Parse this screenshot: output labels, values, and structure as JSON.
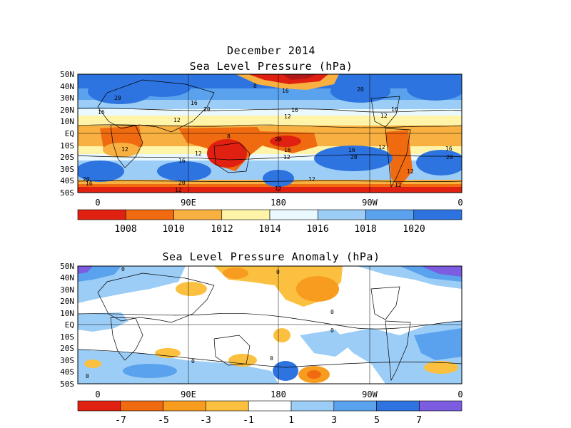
{
  "header": {
    "title": "December 2014",
    "panel1_title": "Sea Level Pressure (hPa)",
    "panel2_title": "Sea Level Pressure Anomaly (hPa)"
  },
  "axes": {
    "lat_labels": [
      "50N",
      "40N",
      "30N",
      "20N",
      "10N",
      "EQ",
      "10S",
      "20S",
      "30S",
      "40S",
      "50S"
    ],
    "lon_labels": [
      "0",
      "90E",
      "180",
      "90W",
      "0"
    ]
  },
  "panel1": {
    "colorbar": {
      "labels": [
        "1008",
        "1010",
        "1012",
        "1014",
        "1016",
        "1018",
        "1020"
      ],
      "colors": [
        "#e02010",
        "#f06a10",
        "#f8b040",
        "#fff4a8",
        "#eaf8ff",
        "#9ccdf6",
        "#5aa2ee",
        "#2e74e0"
      ]
    },
    "contour_labels": [
      "8",
      "16",
      "20",
      "16",
      "20",
      "16",
      "20",
      "16",
      "12",
      "12",
      "12",
      "12",
      "8",
      "12",
      "12",
      "16",
      "20",
      "16",
      "20",
      "12",
      "12",
      "16",
      "20",
      "12",
      "16",
      "20",
      "12",
      "16",
      "20",
      "12",
      "16",
      "12",
      "8",
      "12",
      "20",
      "8",
      "12",
      "16",
      "16"
    ]
  },
  "panel2": {
    "colorbar": {
      "labels": [
        "-7",
        "-5",
        "-3",
        "-1",
        "1",
        "3",
        "5",
        "7"
      ],
      "colors": [
        "#e02010",
        "#f06a10",
        "#f89c20",
        "#fcc040",
        "#ffffff",
        "#9ccdf6",
        "#5aa2ee",
        "#2e74e0",
        "#7c5ce0"
      ]
    },
    "contour_labels": [
      "0",
      "0",
      "0",
      "0",
      "0",
      "0",
      "0",
      "0",
      "0"
    ]
  }
}
